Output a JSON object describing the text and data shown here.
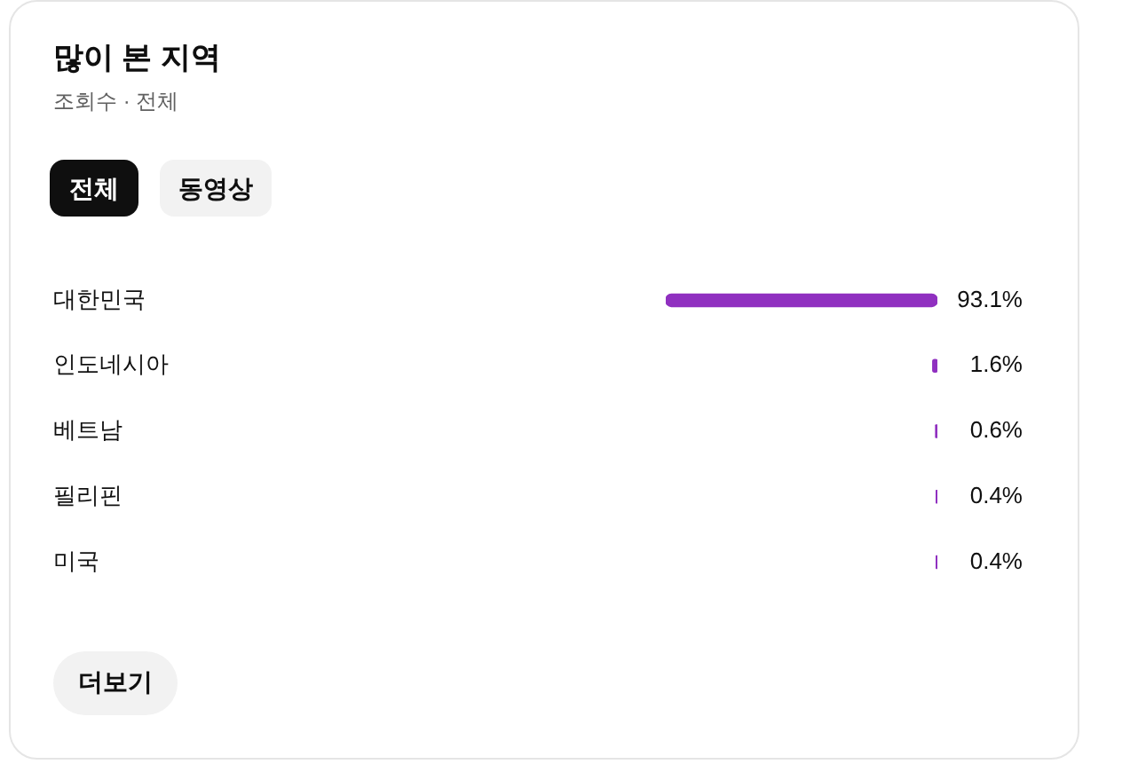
{
  "chart_data": {
    "type": "bar",
    "orientation": "horizontal",
    "title": "많이 본 지역",
    "subtitle": "조회수 · 전체",
    "categories": [
      "대한민국",
      "인도네시아",
      "베트남",
      "필리핀",
      "미국"
    ],
    "values": [
      93.1,
      1.6,
      0.6,
      0.4,
      0.4
    ],
    "color": "#9030c0",
    "value_labels": [
      "93.1%",
      "1.6%",
      "0.6%",
      "0.4%",
      "0.4%"
    ],
    "tick_labels": "y",
    "annotations": [
      "전체",
      "동영상",
      "더보기"
    ]
  }
}
